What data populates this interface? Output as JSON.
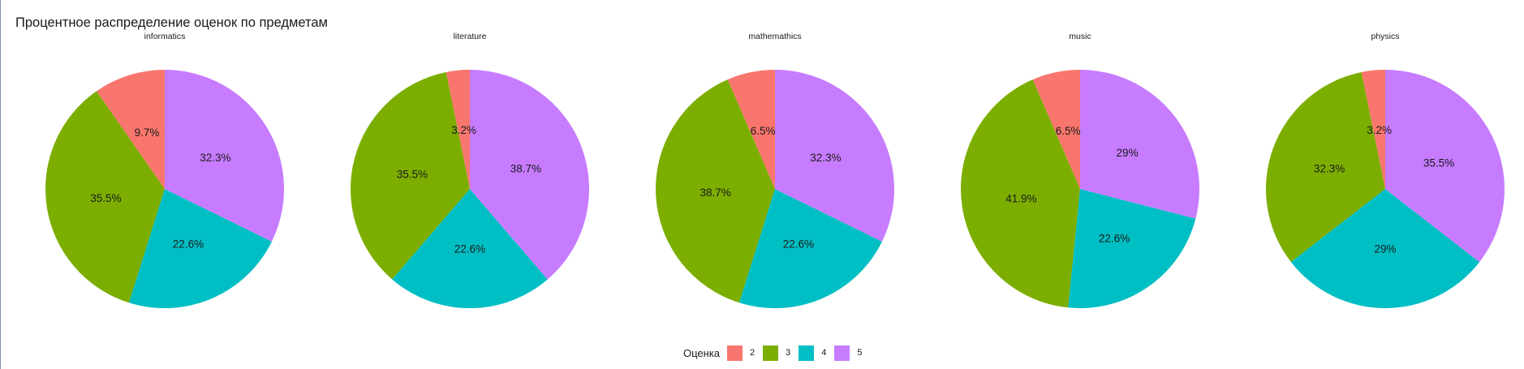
{
  "title": "Процентное распределение оценок по предметам",
  "legend": {
    "title": "Оценка",
    "items": [
      {
        "label": "2",
        "color": "#F8766D"
      },
      {
        "label": "3",
        "color": "#7CAE00"
      },
      {
        "label": "4",
        "color": "#00BFC4"
      },
      {
        "label": "5",
        "color": "#C77CFF"
      }
    ]
  },
  "chart_data": [
    {
      "type": "pie",
      "title": "informatics",
      "categories": [
        "2",
        "3",
        "4",
        "5"
      ],
      "values": [
        9.7,
        35.5,
        22.6,
        32.3
      ],
      "labels": [
        "9.7%",
        "35.5%",
        "22.6%",
        "32.3%"
      ]
    },
    {
      "type": "pie",
      "title": "literature",
      "categories": [
        "2",
        "3",
        "4",
        "5"
      ],
      "values": [
        3.2,
        35.5,
        22.6,
        38.7
      ],
      "labels": [
        "3.2%",
        "35.5%",
        "22.6%",
        "38.7%"
      ]
    },
    {
      "type": "pie",
      "title": "mathemathics",
      "categories": [
        "2",
        "3",
        "4",
        "5"
      ],
      "values": [
        6.5,
        38.7,
        22.6,
        32.3
      ],
      "labels": [
        "6.5%",
        "38.7%",
        "22.6%",
        "32.3%"
      ]
    },
    {
      "type": "pie",
      "title": "music",
      "categories": [
        "2",
        "3",
        "4",
        "5"
      ],
      "values": [
        6.5,
        41.9,
        22.6,
        29
      ],
      "labels": [
        "6.5%",
        "41.9%",
        "22.6%",
        "29%"
      ]
    },
    {
      "type": "pie",
      "title": "physics",
      "categories": [
        "2",
        "3",
        "4",
        "5"
      ],
      "values": [
        3.2,
        32.3,
        29,
        35.5
      ],
      "labels": [
        "3.2%",
        "32.3%",
        "29%",
        "35.5%"
      ]
    }
  ]
}
